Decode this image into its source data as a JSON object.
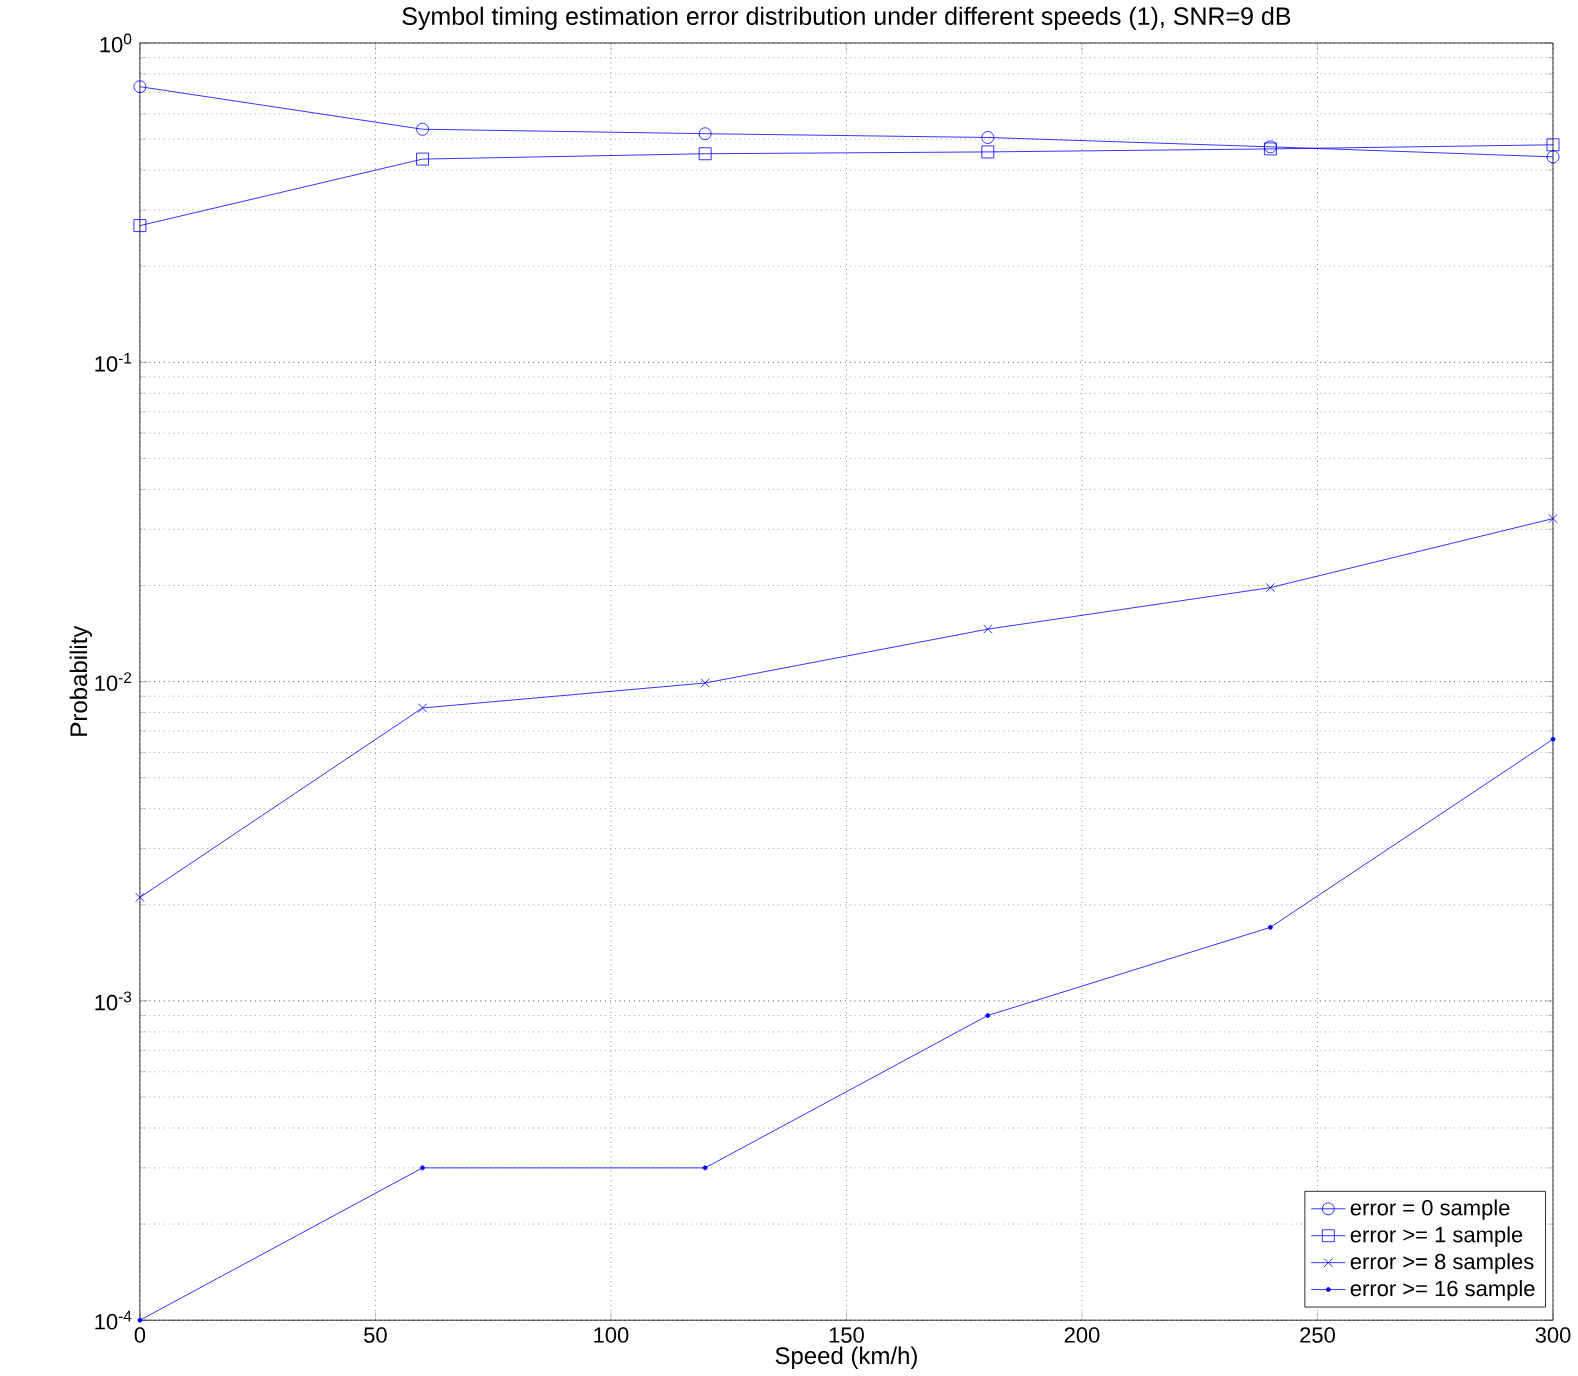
{
  "chart_data": {
    "type": "line",
    "title": "Symbol timing estimation error distribution under different speeds (1), SNR=9 dB",
    "xlabel": "Speed (km/h)",
    "ylabel": "Probability",
    "x": [
      0,
      60,
      120,
      180,
      240,
      300
    ],
    "series": [
      {
        "name": "error = 0 sample",
        "color": "#0000ff",
        "marker": "circle",
        "values": [
          0.73,
          0.537,
          0.52,
          0.506,
          0.473,
          0.44
        ]
      },
      {
        "name": "error >= 1 sample",
        "color": "#0000ff",
        "marker": "square",
        "values": [
          0.268,
          0.433,
          0.45,
          0.456,
          0.466,
          0.48
        ]
      },
      {
        "name": "error >= 8 samples",
        "color": "#0000ff",
        "marker": "cross",
        "values": [
          0.00211,
          0.00827,
          0.0099,
          0.0146,
          0.0197,
          0.0324
        ]
      },
      {
        "name": "error >= 16 sample",
        "color": "#0000ff",
        "marker": "point",
        "values": [
          0.0001,
          0.0003,
          0.0003,
          0.0009,
          0.0017,
          0.0066
        ]
      }
    ],
    "xlim": [
      0,
      300
    ],
    "xticks": [
      0,
      50,
      100,
      150,
      200,
      250,
      300
    ],
    "ylim": [
      0.0001,
      1
    ],
    "yticks": [
      {
        "value": 0.0001,
        "label": "10$^{-4}$"
      },
      {
        "value": 0.001,
        "label": "10$^{-3}$"
      },
      {
        "value": 0.01,
        "label": "10$^{-2}$"
      },
      {
        "value": 0.1,
        "label": "10$^{-1}$"
      },
      {
        "value": 1,
        "label": "10$^{0}$"
      }
    ],
    "log": "y",
    "grid": true,
    "legend": "bottom right",
    "line_style": "solid"
  }
}
